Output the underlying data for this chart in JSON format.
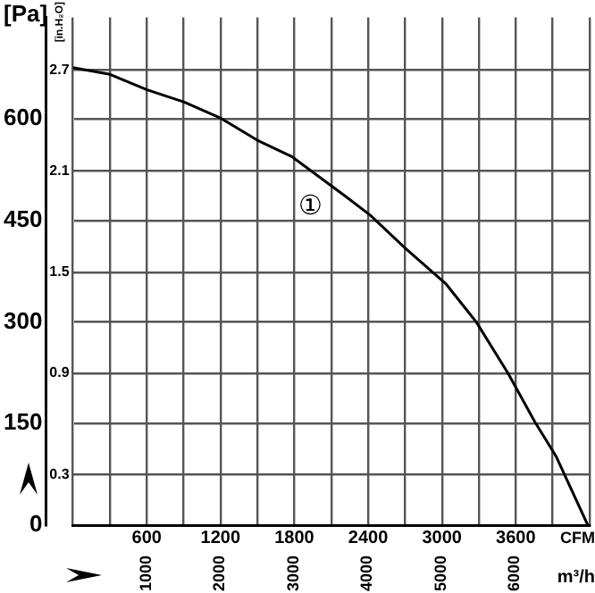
{
  "chart_data": {
    "type": "line",
    "ylabel": "[Pa]",
    "y2label": "[in.H₂O]",
    "xlabel": "CFM",
    "x2label": "m³/h",
    "x": [
      0,
      302,
      604,
      906,
      1194,
      1496,
      1783,
      2215,
      2416,
      2703,
      3034,
      3279,
      3538,
      3753,
      3926,
      4185
    ],
    "series": [
      {
        "name": "①",
        "color": "#000000",
        "values": [
          676,
          666,
          643,
          625,
          602,
          569,
          544,
          486,
          458,
          409,
          356,
          300,
          224,
          153,
          102,
          0
        ]
      }
    ],
    "xlim": [
      0,
      4200
    ],
    "xticks": [
      {
        "value": 0,
        "label": null
      },
      {
        "value": 300,
        "label": null
      },
      600,
      {
        "value": 900,
        "label": null
      },
      1200,
      {
        "value": 1500,
        "label": null
      },
      1800,
      {
        "value": 2100,
        "label": null
      },
      2400,
      {
        "value": 2700,
        "label": null
      },
      3000,
      {
        "value": 3300,
        "label": null
      },
      3600,
      {
        "value": 3900,
        "label": null
      },
      {
        "value": 4200,
        "label": null
      }
    ],
    "x2lim": [
      0,
      7018
    ],
    "x2ticks": [
      1000,
      2000,
      3000,
      4000,
      5000,
      6000
    ],
    "ylim": [
      0,
      750
    ],
    "yticks": [
      0,
      150,
      300,
      450,
      600
    ],
    "y2lim": [
      0,
      3.01
    ],
    "y2ticks": [
      0.3,
      0.9,
      1.5,
      2.1,
      2.7
    ],
    "grid": true,
    "legend": false,
    "marker": "none",
    "line_style": "solid"
  }
}
